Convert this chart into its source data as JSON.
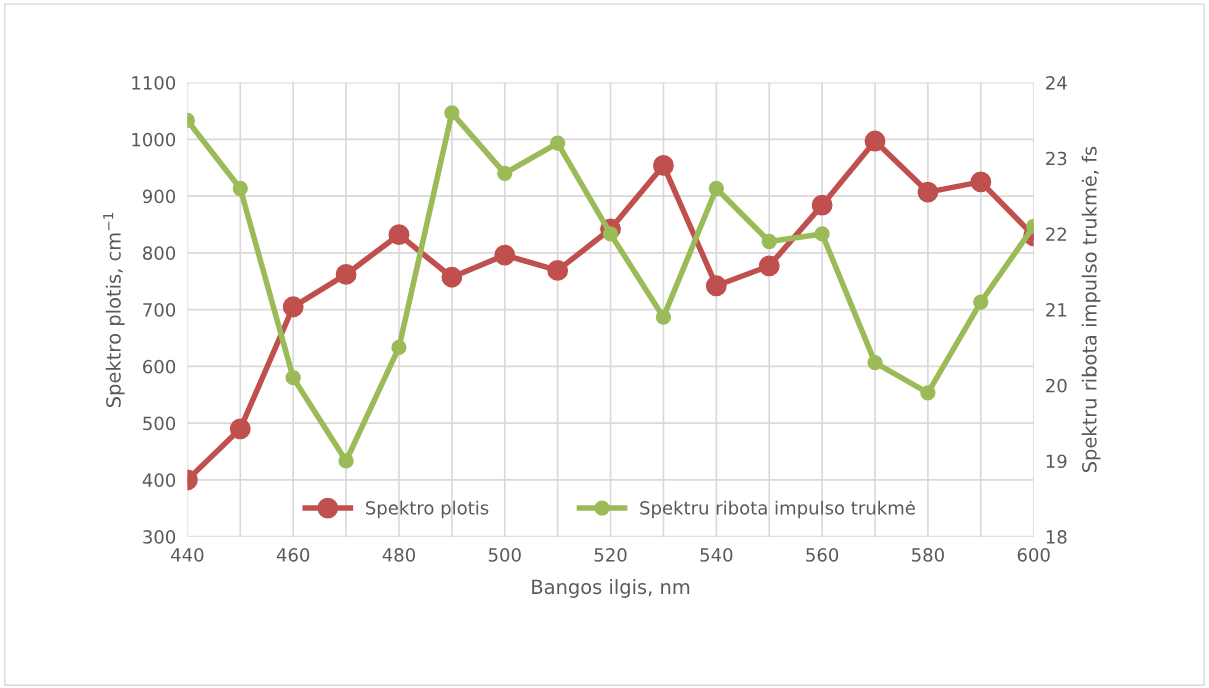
{
  "chart_data": {
    "type": "line",
    "xlabel": "Bangos ilgis, nm",
    "ylabel": "Spektro plotis, cm$^{−1}$",
    "y2label": "Spektru ribota impulso trukmė, fs",
    "x": [
      440,
      450,
      460,
      470,
      480,
      490,
      500,
      510,
      520,
      530,
      540,
      550,
      560,
      570,
      580,
      590,
      600
    ],
    "series": [
      {
        "name": "Spektro plotis",
        "color": "#c0504d",
        "values": [
          400,
          490,
          705,
          762,
          832,
          757,
          796,
          769,
          842,
          954,
          742,
          777,
          884,
          997,
          907,
          925,
          830
        ]
      },
      {
        "name": "Spektru ribota impulso trukmė",
        "color": "#9bbb59",
        "axis": "y2",
        "values": [
          23.5,
          22.6,
          20.1,
          19.0,
          20.5,
          23.6,
          22.8,
          23.2,
          22.0,
          20.9,
          22.6,
          21.9,
          22.0,
          20.3,
          19.9,
          21.1,
          22.1
        ]
      }
    ],
    "xlim": [
      440,
      600
    ],
    "xticks": [
      440,
      {
        "value": 450,
        "label": null
      },
      460,
      {
        "value": 470,
        "label": null
      },
      480,
      {
        "value": 490,
        "label": null
      },
      500,
      {
        "value": 510,
        "label": null
      },
      520,
      {
        "value": 530,
        "label": null
      },
      540,
      {
        "value": 550,
        "label": null
      },
      560,
      {
        "value": 570,
        "label": null
      },
      580,
      {
        "value": 590,
        "label": null
      },
      600
    ],
    "ylim": [
      300,
      1100
    ],
    "yticks": [
      300,
      400,
      500,
      600,
      700,
      800,
      900,
      1000,
      1100
    ],
    "y2lim": [
      18,
      24
    ],
    "y2ticks": [
      18,
      19,
      20,
      21,
      22,
      23,
      24
    ],
    "grid": true,
    "legend": "bottom",
    "marker": "circle",
    "line_style": "solid"
  }
}
